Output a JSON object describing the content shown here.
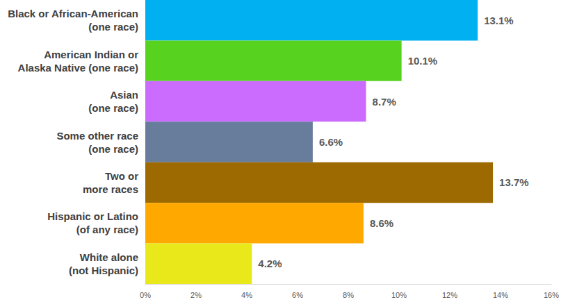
{
  "chart_data": {
    "type": "bar",
    "orientation": "horizontal",
    "categories": [
      "Black or African-American\n(one race)",
      "American Indian or\nAlaska Native (one race)",
      "Asian\n(one race)",
      "Some other race\n(one race)",
      "Two or\nmore races",
      "Hispanic or Latino\n(of any race)",
      "White alone\n(not Hispanic)"
    ],
    "values": [
      13.1,
      10.1,
      8.7,
      6.6,
      13.7,
      8.6,
      4.2
    ],
    "value_labels": [
      "13.1%",
      "10.1%",
      "8.7%",
      "6.6%",
      "13.7%",
      "8.6%",
      "4.2%"
    ],
    "colors": [
      "#00b0f0",
      "#57d31f",
      "#cc6cff",
      "#687d9c",
      "#9c6a00",
      "#ffa800",
      "#e8e81a"
    ],
    "data_labels": true,
    "grid": false,
    "xlim": [
      0,
      16
    ],
    "xticks": [
      {
        "value": 0,
        "label": "0%"
      },
      {
        "value": 2,
        "label": "2%"
      },
      {
        "value": 4,
        "label": "4%"
      },
      {
        "value": 6,
        "label": "6%"
      },
      {
        "value": 8,
        "label": "8%"
      },
      {
        "value": 10,
        "label": "10%"
      },
      {
        "value": 12,
        "label": "12%"
      },
      {
        "value": 14,
        "label": "14%"
      },
      {
        "value": 16,
        "label": "16%"
      }
    ]
  }
}
